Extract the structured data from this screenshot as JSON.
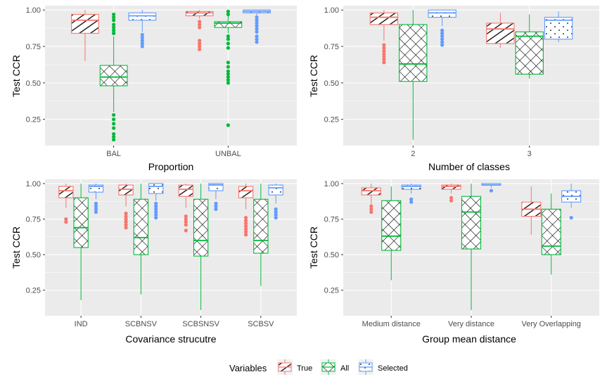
{
  "colors": {
    "True": "#F8766D",
    "All": "#00BA38",
    "Selected": "#619CFF",
    "panel_bg": "#EBEBEB",
    "grid": "#FFFFFF",
    "axis_text": "#4D4D4D",
    "title_text": "#000000"
  },
  "legend": {
    "title": "Variables",
    "items": [
      {
        "name": "True",
        "color_key": "True",
        "pattern": "lines"
      },
      {
        "name": "All",
        "color_key": "All",
        "pattern": "crosshatch"
      },
      {
        "name": "Selected",
        "color_key": "Selected",
        "pattern": "dots"
      }
    ],
    "position": "bottom"
  },
  "chart_data": [
    {
      "type": "boxplot",
      "xlabel": "Proportion",
      "ylabel": "Test CCR",
      "ylim": [
        0.07,
        1.03
      ],
      "yticks": [
        0.25,
        0.5,
        0.75,
        1.0
      ],
      "ytick_labels": [
        "0.25",
        "0.50",
        "0.75",
        "1.00"
      ],
      "categories": [
        "BAL",
        "UNBAL"
      ],
      "series": [
        {
          "name": "True",
          "boxes": [
            {
              "q1": 0.84,
              "median": 0.93,
              "q3": 0.97,
              "lower": 0.65,
              "upper": 1.0,
              "outliers": []
            },
            {
              "q1": 0.96,
              "median": 0.98,
              "q3": 0.99,
              "lower": 0.94,
              "upper": 1.0,
              "outliers": [
                0.73,
                0.75,
                0.77,
                0.79,
                0.88,
                0.9,
                0.92
              ]
            }
          ]
        },
        {
          "name": "All",
          "boxes": [
            {
              "q1": 0.48,
              "median": 0.54,
              "q3": 0.62,
              "lower": 0.3,
              "upper": 0.82,
              "outliers": [
                0.11,
                0.13,
                0.15,
                0.19,
                0.22,
                0.25,
                0.28,
                0.84,
                0.86,
                0.88,
                0.9,
                0.93,
                0.95,
                0.97
              ]
            },
            {
              "q1": 0.88,
              "median": 0.91,
              "q3": 0.92,
              "lower": 0.84,
              "upper": 0.96,
              "outliers": [
                0.21,
                0.5,
                0.52,
                0.54,
                0.56,
                0.58,
                0.61,
                0.64,
                0.74,
                0.77,
                0.8,
                0.82,
                0.97,
                0.99
              ]
            }
          ]
        },
        {
          "name": "Selected",
          "boxes": [
            {
              "q1": 0.93,
              "median": 0.96,
              "q3": 0.98,
              "lower": 0.85,
              "upper": 1.0,
              "outliers": [
                0.75,
                0.77,
                0.79,
                0.81,
                0.83
              ]
            },
            {
              "q1": 0.98,
              "median": 0.99,
              "q3": 1.0,
              "lower": 0.96,
              "upper": 1.0,
              "outliers": [
                0.78,
                0.8,
                0.82,
                0.85,
                0.87,
                0.89,
                0.91,
                0.93,
                0.95
              ]
            }
          ]
        }
      ]
    },
    {
      "type": "boxplot",
      "xlabel": "Number of classes",
      "ylabel": "Test CCR",
      "ylim": [
        0.07,
        1.03
      ],
      "yticks": [
        0.25,
        0.5,
        0.75,
        1.0
      ],
      "ytick_labels": [
        "0.25",
        "0.50",
        "0.75",
        "1.00"
      ],
      "categories": [
        "2",
        "3"
      ],
      "series": [
        {
          "name": "True",
          "boxes": [
            {
              "q1": 0.9,
              "median": 0.95,
              "q3": 0.98,
              "lower": 0.79,
              "upper": 1.0,
              "outliers": [
                0.64,
                0.66,
                0.68,
                0.7,
                0.72,
                0.74,
                0.76
              ]
            },
            {
              "q1": 0.77,
              "median": 0.87,
              "q3": 0.91,
              "lower": 0.74,
              "upper": 0.98,
              "outliers": []
            }
          ]
        },
        {
          "name": "All",
          "boxes": [
            {
              "q1": 0.51,
              "median": 0.63,
              "q3": 0.9,
              "lower": 0.11,
              "upper": 1.0,
              "outliers": []
            },
            {
              "q1": 0.56,
              "median": 0.82,
              "q3": 0.85,
              "lower": 0.53,
              "upper": 0.97,
              "outliers": []
            }
          ]
        },
        {
          "name": "Selected",
          "boxes": [
            {
              "q1": 0.95,
              "median": 0.98,
              "q3": 1.0,
              "lower": 0.89,
              "upper": 1.0,
              "outliers": [
                0.76,
                0.78,
                0.8,
                0.82,
                0.84,
                0.86
              ]
            },
            {
              "q1": 0.8,
              "median": 0.93,
              "q3": 0.95,
              "lower": 0.78,
              "upper": 0.99,
              "outliers": []
            }
          ]
        }
      ]
    },
    {
      "type": "boxplot",
      "xlabel": "Covariance strucutre",
      "ylabel": "Test CCR",
      "ylim": [
        0.07,
        1.03
      ],
      "yticks": [
        0.25,
        0.5,
        0.75,
        1.0
      ],
      "ytick_labels": [
        "0.25",
        "0.50",
        "0.75",
        "1.00"
      ],
      "categories": [
        "IND",
        "SCBNSV",
        "SCBSNSV",
        "SCBSV"
      ],
      "series": [
        {
          "name": "True",
          "boxes": [
            {
              "q1": 0.9,
              "median": 0.95,
              "q3": 0.98,
              "lower": 0.83,
              "upper": 1.0,
              "outliers": [
                0.73,
                0.75
              ]
            },
            {
              "q1": 0.92,
              "median": 0.96,
              "q3": 0.99,
              "lower": 0.84,
              "upper": 1.0,
              "outliers": [
                0.69,
                0.71,
                0.73,
                0.75,
                0.77,
                0.79
              ]
            },
            {
              "q1": 0.91,
              "median": 0.96,
              "q3": 0.99,
              "lower": 0.83,
              "upper": 1.0,
              "outliers": [
                0.67,
                0.71,
                0.73,
                0.75,
                0.77
              ]
            },
            {
              "q1": 0.9,
              "median": 0.95,
              "q3": 0.98,
              "lower": 0.82,
              "upper": 1.0,
              "outliers": [
                0.64,
                0.66,
                0.68,
                0.7,
                0.72,
                0.74,
                0.76
              ]
            }
          ]
        },
        {
          "name": "All",
          "boxes": [
            {
              "q1": 0.55,
              "median": 0.69,
              "q3": 0.9,
              "lower": 0.18,
              "upper": 1.0,
              "outliers": []
            },
            {
              "q1": 0.5,
              "median": 0.62,
              "q3": 0.89,
              "lower": 0.22,
              "upper": 1.0,
              "outliers": []
            },
            {
              "q1": 0.49,
              "median": 0.6,
              "q3": 0.89,
              "lower": 0.11,
              "upper": 1.0,
              "outliers": []
            },
            {
              "q1": 0.51,
              "median": 0.6,
              "q3": 0.89,
              "lower": 0.28,
              "upper": 1.0,
              "outliers": []
            }
          ]
        },
        {
          "name": "Selected",
          "boxes": [
            {
              "q1": 0.94,
              "median": 0.98,
              "q3": 0.99,
              "lower": 0.89,
              "upper": 1.0,
              "outliers": [
                0.8,
                0.82,
                0.84,
                0.86
              ]
            },
            {
              "q1": 0.93,
              "median": 0.98,
              "q3": 1.0,
              "lower": 0.88,
              "upper": 1.0,
              "outliers": [
                0.76,
                0.78,
                0.8,
                0.82,
                0.84,
                0.86
              ]
            },
            {
              "q1": 0.95,
              "median": 0.99,
              "q3": 1.0,
              "lower": 0.89,
              "upper": 1.0,
              "outliers": [
                0.82,
                0.84,
                0.86
              ]
            },
            {
              "q1": 0.92,
              "median": 0.97,
              "q3": 0.99,
              "lower": 0.86,
              "upper": 1.0,
              "outliers": [
                0.76,
                0.78,
                0.8,
                0.82
              ]
            }
          ]
        }
      ]
    },
    {
      "type": "boxplot",
      "xlabel": "Group mean distance",
      "ylabel": "Test CCR",
      "ylim": [
        0.07,
        1.03
      ],
      "yticks": [
        0.25,
        0.5,
        0.75,
        1.0
      ],
      "ytick_labels": [
        "0.25",
        "0.50",
        "0.75",
        "1.00"
      ],
      "categories": [
        "Medium distance",
        "Very distance",
        "Very Overlapping"
      ],
      "series": [
        {
          "name": "True",
          "boxes": [
            {
              "q1": 0.92,
              "median": 0.95,
              "q3": 0.97,
              "lower": 0.85,
              "upper": 1.0,
              "outliers": [
                0.8,
                0.82,
                0.84
              ]
            },
            {
              "q1": 0.96,
              "median": 0.98,
              "q3": 0.99,
              "lower": 0.93,
              "upper": 1.0,
              "outliers": [
                0.88,
                0.9
              ]
            },
            {
              "q1": 0.77,
              "median": 0.82,
              "q3": 0.87,
              "lower": 0.64,
              "upper": 0.98,
              "outliers": []
            }
          ]
        },
        {
          "name": "All",
          "boxes": [
            {
              "q1": 0.53,
              "median": 0.63,
              "q3": 0.88,
              "lower": 0.32,
              "upper": 0.98,
              "outliers": []
            },
            {
              "q1": 0.54,
              "median": 0.8,
              "q3": 0.91,
              "lower": 0.11,
              "upper": 1.0,
              "outliers": []
            },
            {
              "q1": 0.5,
              "median": 0.56,
              "q3": 0.82,
              "lower": 0.36,
              "upper": 0.93,
              "outliers": []
            }
          ]
        },
        {
          "name": "Selected",
          "boxes": [
            {
              "q1": 0.96,
              "median": 0.98,
              "q3": 0.99,
              "lower": 0.93,
              "upper": 1.0,
              "outliers": [
                0.87,
                0.89
              ]
            },
            {
              "q1": 0.99,
              "median": 0.99,
              "q3": 1.0,
              "lower": 0.97,
              "upper": 1.0,
              "outliers": [
                0.95
              ]
            },
            {
              "q1": 0.87,
              "median": 0.91,
              "q3": 0.95,
              "lower": 0.83,
              "upper": 1.0,
              "outliers": [
                0.76
              ]
            }
          ]
        }
      ]
    }
  ]
}
